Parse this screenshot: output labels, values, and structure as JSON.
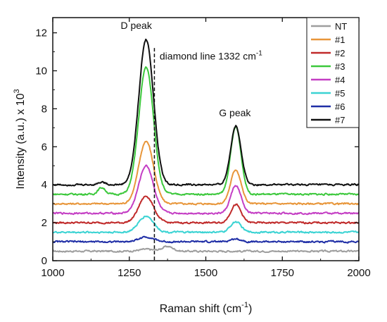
{
  "chart_data": {
    "type": "line",
    "xlabel": "Raman shift (cm",
    "xlabel_sup": "-1",
    "xlabel_end": ")",
    "ylabel": "Intensity (a.u.) x 10",
    "ylabel_sup": "3",
    "xlim": [
      1000,
      2000
    ],
    "ylim": [
      0,
      12.8
    ],
    "x_ticks": [
      1000,
      1250,
      1500,
      1750,
      2000
    ],
    "x_tick_labels": [
      "1000",
      "1250",
      "1500",
      "1750",
      "2000"
    ],
    "y_ticks": [
      0,
      2,
      4,
      6,
      8,
      10,
      12
    ],
    "y_tick_labels": [
      "0",
      "2",
      "4",
      "6",
      "8",
      "10",
      "12"
    ],
    "grid": false,
    "legend_position": "top-right",
    "annotations": [
      {
        "text": "D peak",
        "x": 1305,
        "y": 12.2
      },
      {
        "text": "G peak",
        "x": 1595,
        "y": 7.6
      },
      {
        "text": "diamond line 1332 cm",
        "sup": "-1",
        "x": 1340,
        "y": 10.6
      }
    ],
    "diamond_line_x": 1332,
    "series": [
      {
        "name": "NT",
        "color": "#9e9e9e",
        "baseline": 0.5,
        "d_peak": 0.1,
        "g_peak": 0.0,
        "extra": [
          {
            "x": 1375,
            "h": 0.25,
            "w": 18
          }
        ]
      },
      {
        "name": "#1",
        "color": "#e8963a",
        "baseline": 3.0,
        "d_peak": 3.3,
        "g_peak": 1.8,
        "extra": []
      },
      {
        "name": "#2",
        "color": "#c02a2a",
        "baseline": 2.0,
        "d_peak": 1.4,
        "g_peak": 0.95,
        "extra": []
      },
      {
        "name": "#3",
        "color": "#3cc83c",
        "baseline": 3.5,
        "d_peak": 6.7,
        "g_peak": 3.55,
        "extra": [
          {
            "x": 1160,
            "h": 0.35,
            "w": 12
          }
        ]
      },
      {
        "name": "#4",
        "color": "#c43ec4",
        "baseline": 2.5,
        "d_peak": 2.5,
        "g_peak": 1.45,
        "extra": []
      },
      {
        "name": "#5",
        "color": "#3ad3d3",
        "baseline": 1.5,
        "d_peak": 0.85,
        "g_peak": 0.55,
        "extra": []
      },
      {
        "name": "#6",
        "color": "#1f2ea6",
        "baseline": 1.0,
        "d_peak": 0.25,
        "g_peak": 0.15,
        "extra": []
      },
      {
        "name": "#7",
        "color": "#111111",
        "baseline": 4.0,
        "d_peak": 7.65,
        "g_peak": 3.1,
        "extra": [
          {
            "x": 1160,
            "h": 0.15,
            "w": 12
          }
        ]
      }
    ],
    "peak_positions": {
      "d": 1305,
      "g": 1598
    },
    "peak_widths": {
      "d": 24,
      "g": 17
    }
  }
}
